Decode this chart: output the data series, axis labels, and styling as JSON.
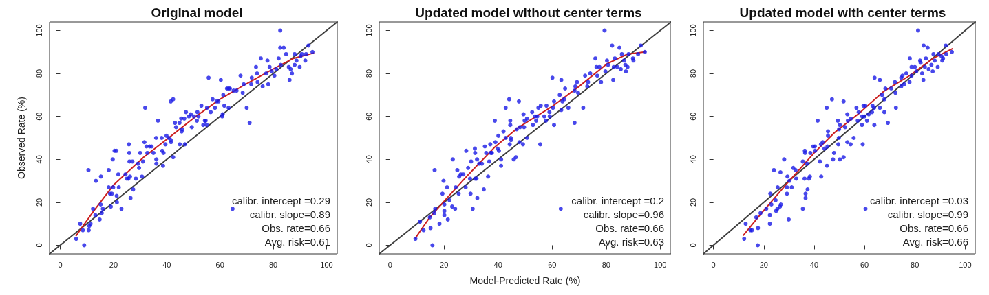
{
  "chart_data": [
    {
      "type": "scatter",
      "title": "Original model",
      "ylabel": "Observed Rate (%)",
      "xlim": [
        -4,
        104
      ],
      "ylim": [
        -4,
        104
      ],
      "xticks": [
        0,
        20,
        40,
        60,
        80,
        100
      ],
      "yticks": [
        0,
        20,
        40,
        60,
        80,
        100
      ],
      "marker": "circle",
      "annotations": [
        "calibr. intercept =0.29",
        "calibr. slope=0.89",
        "Obs. rate=0.66",
        "Avg. risk=0.61"
      ],
      "series": [
        {
          "type": "line",
          "color": "#404040",
          "marker": "none",
          "x": [
            -4,
            104
          ],
          "values": [
            -4,
            104
          ]
        },
        {
          "color": "#1a1ae6",
          "x": [
            6,
            7.5,
            8.5,
            9,
            10.7,
            10.9,
            11.4,
            10.6,
            12.3,
            13.2,
            13.4,
            14.8,
            15.2,
            15.3,
            15.6,
            16,
            18.2,
            18.2,
            18.7,
            19,
            19.4,
            19.7,
            19.9,
            20.4,
            21.1,
            21.2,
            21.3,
            21.8,
            22,
            23,
            24.5,
            25,
            25.6,
            25.8,
            25.9,
            26,
            26.2,
            26.4,
            27.1,
            27.4,
            28.4,
            29.2,
            29.6,
            30,
            30.7,
            31.1,
            31.6,
            31.9,
            32.4,
            32.7,
            33.6,
            34.3,
            35,
            36,
            36.1,
            36.1,
            36.7,
            38.1,
            38.3,
            38.6,
            38.8,
            39.5,
            39.9,
            40.7,
            41.5,
            41.6,
            41.5,
            42.4,
            42.4,
            43.1,
            43.5,
            44.8,
            44.9,
            45.4,
            45.6,
            45.8,
            46.6,
            46.8,
            47.2,
            48.3,
            49,
            49.4,
            50.2,
            51.3,
            51.5,
            51.9,
            53,
            53.7,
            54.3,
            54.6,
            55,
            55.1,
            55.7,
            56.5,
            57.2,
            58.1,
            58.7,
            59.4,
            60.3,
            60.8,
            61,
            61.2,
            61.6,
            62.6,
            63.2,
            63.2,
            63.7,
            64.7,
            65.1,
            66.2,
            67.7,
            68.5,
            68.9,
            70,
            71.1,
            71.7,
            71.9,
            73.5,
            73.9,
            74.1,
            75.3,
            76,
            77.3,
            77.8,
            78.1,
            78.6,
            79.4,
            80.4,
            81.1,
            82,
            82.6,
            82.6,
            82.8,
            83.9,
            84.8,
            85.8,
            86.1,
            86.5,
            87,
            88,
            88,
            88.7,
            89.9,
            90.2,
            90.7,
            92,
            92.3,
            93.2,
            94.7
          ],
          "values": [
            3,
            10,
            7,
            0,
            7,
            9,
            10,
            35,
            17,
            14,
            30,
            12,
            19,
            32,
            15,
            17,
            27,
            35,
            24,
            18,
            24,
            40,
            27,
            44,
            44,
            23,
            20,
            33,
            27,
            17,
            33,
            31,
            31,
            47,
            43,
            39,
            32,
            22,
            39,
            26,
            31,
            38,
            36,
            43,
            32,
            39,
            48,
            64,
            46,
            43,
            46,
            46,
            43,
            50,
            40,
            38,
            58,
            50,
            44,
            37,
            43,
            47,
            51,
            50,
            49,
            48,
            67,
            68,
            41,
            57,
            55,
            57,
            47,
            59,
            53,
            54,
            59,
            47,
            62,
            60,
            61,
            55,
            60,
            58,
            62,
            60,
            65,
            56,
            58,
            58,
            56,
            64,
            78,
            62,
            68,
            64,
            67,
            67,
            77,
            60,
            61,
            70,
            65,
            73,
            64,
            73,
            73,
            17,
            72,
            72,
            79,
            71,
            75,
            64,
            57,
            75,
            78,
            83,
            80,
            76,
            87,
            74,
            80,
            86,
            75,
            83,
            81,
            79,
            82,
            87,
            100,
            92,
            84,
            92,
            89,
            83,
            77,
            82,
            80,
            89,
            84,
            86,
            83,
            88,
            89,
            86,
            89,
            93,
            90
          ]
        },
        {
          "type": "line",
          "color": "#cc1f1f",
          "marker": "none",
          "x": [
            6,
            12.6,
            20,
            31.3,
            40.7,
            50.9,
            60,
            69.6,
            79.8,
            87.5,
            95.1
          ],
          "values": [
            4.5,
            16,
            28,
            41,
            50,
            60,
            68,
            75,
            82,
            87,
            89.5
          ]
        }
      ]
    },
    {
      "type": "scatter",
      "title": "Updated model without center terms",
      "xlabel": "Model-Predicted Rate (%)",
      "xlim": [
        -4,
        104
      ],
      "ylim": [
        -4,
        104
      ],
      "xticks": [
        0,
        20,
        40,
        60,
        80,
        100
      ],
      "yticks": [
        0,
        20,
        40,
        60,
        80,
        100
      ],
      "marker": "circle",
      "annotations": [
        "calibr. intercept =0.2",
        "calibr. slope=0.96",
        "Obs. rate=0.66",
        "Avg. risk=0.63"
      ],
      "series": [
        {
          "type": "line",
          "color": "#404040",
          "marker": "none",
          "x": [
            -4,
            104
          ],
          "values": [
            -4,
            104
          ]
        },
        {
          "color": "#1a1ae6",
          "x": [
            9.4,
            11.1,
            12.4,
            14.7,
            15,
            15.7,
            16.5,
            16.7,
            16.4,
            18.3,
            19.4,
            19.8,
            20.1,
            20.1,
            20.1,
            21.1,
            21.4,
            22,
            23,
            23.2,
            24.1,
            24.3,
            24.9,
            25.4,
            25.6,
            26.2,
            27.1,
            28,
            28.2,
            28.9,
            29.6,
            29.8,
            30,
            30.6,
            31.4,
            31.5,
            31.5,
            32,
            32.3,
            32.2,
            33,
            34,
            34.7,
            35.1,
            35.6,
            36.3,
            36.7,
            37.1,
            37.3,
            37.7,
            38.8,
            39,
            39.8,
            40.1,
            40.3,
            41.1,
            41.1,
            42,
            42.8,
            42.8,
            44.1,
            44.3,
            44.5,
            44.5,
            44.7,
            44.8,
            45.8,
            46.6,
            46.9,
            47.7,
            47.9,
            48.1,
            49.2,
            49.4,
            49.6,
            49.8,
            50.7,
            50.7,
            52.6,
            52.9,
            53.7,
            54.1,
            54.5,
            54.9,
            55.6,
            55.8,
            57.1,
            57.7,
            57.9,
            59,
            59.1,
            60.1,
            60.3,
            60.7,
            60.7,
            62.8,
            63.2,
            63.4,
            63.4,
            63.8,
            64.5,
            64.8,
            66,
            68.3,
            68.3,
            68.6,
            69.2,
            69.6,
            71.5,
            72.2,
            73,
            73.3,
            74.1,
            76,
            76.4,
            76.7,
            77.5,
            78.1,
            79.4,
            79.7,
            80.3,
            80.7,
            82.2,
            82.6,
            82.8,
            83.2,
            84.1,
            84.9,
            85.4,
            85.8,
            86.6,
            87.1,
            87.3,
            87.9,
            88.3,
            89.9,
            90.1,
            91.8,
            92.8,
            94.3
          ],
          "values": [
            3,
            11,
            7,
            13,
            8,
            0,
            35,
            17,
            15,
            10,
            24,
            30,
            16,
            14,
            19,
            27,
            12,
            21,
            18,
            40,
            17,
            27,
            35,
            24,
            32,
            33,
            33,
            27,
            44,
            36,
            31,
            24,
            39,
            17,
            45,
            43,
            31,
            31,
            22,
            40,
            38,
            38,
            26,
            46,
            43,
            32,
            39,
            47,
            43,
            43,
            58,
            48,
            45,
            51,
            44,
            40,
            37,
            53,
            50,
            64,
            68,
            47,
            58,
            56,
            50,
            49,
            40,
            41,
            54,
            67,
            48,
            55,
            47,
            61,
            55,
            58,
            50,
            59,
            62,
            56,
            60,
            58,
            60,
            64,
            47,
            65,
            60,
            58,
            65,
            62,
            60,
            78,
            64,
            56,
            67,
            70,
            17,
            77,
            63,
            67,
            68,
            73,
            64,
            57,
            72,
            74,
            76,
            71,
            64,
            79,
            74,
            76,
            80,
            87,
            83,
            79,
            83,
            76,
            100,
            81,
            86,
            84,
            93,
            77,
            83,
            87,
            83,
            92,
            82,
            89,
            86,
            84,
            81,
            83,
            89,
            87,
            86,
            89,
            93,
            90
          ]
        },
        {
          "type": "line",
          "color": "#cc1f1f",
          "marker": "none",
          "x": [
            9.4,
            14.7,
            20,
            28.3,
            38.6,
            47.1,
            60.4,
            70,
            80.3,
            87.9,
            94.3
          ],
          "values": [
            3.4,
            13,
            20.5,
            32,
            45.5,
            54.5,
            65,
            74,
            84.5,
            89,
            90
          ]
        }
      ]
    },
    {
      "type": "scatter",
      "title": "Updated model with center terms",
      "xlim": [
        -4,
        104
      ],
      "ylim": [
        -4,
        104
      ],
      "xticks": [
        0,
        20,
        40,
        60,
        80,
        100
      ],
      "yticks": [
        0,
        20,
        40,
        60,
        80,
        100
      ],
      "marker": "circle",
      "annotations": [
        "calibr. intercept =0.03",
        "calibr. slope=0.99",
        "Obs. rate=0.66",
        "Avg. risk=0.66"
      ],
      "series": [
        {
          "type": "line",
          "color": "#404040",
          "marker": "none",
          "x": [
            -4,
            104
          ],
          "values": [
            -4,
            104
          ]
        },
        {
          "color": "#1a1ae6",
          "x": [
            12.2,
            12.8,
            14.7,
            15.3,
            17,
            17.6,
            17.7,
            18.7,
            21,
            22.4,
            22.4,
            22.6,
            23,
            24,
            24.7,
            24.9,
            25.4,
            25.5,
            26.4,
            26.8,
            26.6,
            28.1,
            29.2,
            29.2,
            29.4,
            29.9,
            30.2,
            31.1,
            31.7,
            32.6,
            32.9,
            35.5,
            35.5,
            36.2,
            36.3,
            36.4,
            36.6,
            36.6,
            37.2,
            37.4,
            37.9,
            38.3,
            38.5,
            39.6,
            40.3,
            40.4,
            41.4,
            42.3,
            42.7,
            42.8,
            43.4,
            44.1,
            45,
            45.1,
            45.3,
            45.5,
            45.5,
            47.1,
            47.5,
            47.9,
            49.4,
            49.6,
            49.8,
            49.9,
            50.2,
            50.2,
            51.7,
            51.7,
            52.3,
            53.2,
            53.2,
            53.4,
            54.5,
            54.6,
            55.7,
            56.8,
            57.3,
            57.7,
            59,
            59.1,
            59.3,
            59.6,
            60,
            60.3,
            61,
            61.7,
            60.4,
            63,
            63.2,
            63.8,
            64,
            66.1,
            63.9,
            66.1,
            67,
            67.9,
            67.9,
            68.3,
            69.3,
            70.6,
            72.1,
            72.3,
            72.5,
            74.6,
            74.6,
            75.1,
            75.8,
            76.6,
            77.9,
            78,
            78.7,
            78.7,
            80,
            80.6,
            81.3,
            82.1,
            82.3,
            82.9,
            83.4,
            83.5,
            84,
            84.4,
            85.1,
            85.5,
            86.6,
            87.1,
            87.4,
            87.9,
            89.1,
            89.4,
            90.6,
            90.9,
            91.2,
            92.3,
            92.5,
            94.7
          ],
          "values": [
            3,
            10,
            7,
            7,
            13,
            0,
            8,
            15,
            17,
            10,
            14,
            24,
            19,
            35,
            21,
            16,
            17,
            27,
            18,
            19,
            34,
            40,
            24,
            27,
            32,
            12,
            30,
            27,
            36,
            35,
            31,
            17,
            39,
            31,
            44,
            43,
            24,
            22,
            38,
            26,
            31,
            32,
            43,
            46,
            46,
            44,
            58,
            39,
            47,
            32,
            48,
            45,
            64,
            37,
            46,
            51,
            53,
            68,
            40,
            43,
            58,
            47,
            50,
            54,
            56,
            40,
            67,
            41,
            55,
            48,
            61,
            58,
            47,
            59,
            50,
            64,
            58,
            62,
            56,
            60,
            47,
            65,
            60,
            65,
            58,
            61,
            17,
            62,
            65,
            64,
            78,
            77,
            56,
            64,
            70,
            68,
            62,
            73,
            57,
            73,
            76,
            71,
            64,
            78,
            74,
            79,
            75,
            80,
            76,
            87,
            79,
            83,
            83,
            81,
            100,
            86,
            85,
            80,
            77,
            93,
            83,
            87,
            92,
            82,
            84,
            81,
            89,
            86,
            83,
            89,
            88,
            86,
            87,
            93,
            89,
            90
          ]
        },
        {
          "type": "line",
          "color": "#cc1f1f",
          "marker": "none",
          "x": [
            11.9,
            19.1,
            29.4,
            40,
            48.1,
            58,
            67.7,
            77.9,
            87.2,
            94.9
          ],
          "values": [
            4.7,
            15,
            29,
            43,
            52.5,
            61.6,
            71.7,
            79,
            87,
            91.5
          ]
        }
      ]
    }
  ]
}
